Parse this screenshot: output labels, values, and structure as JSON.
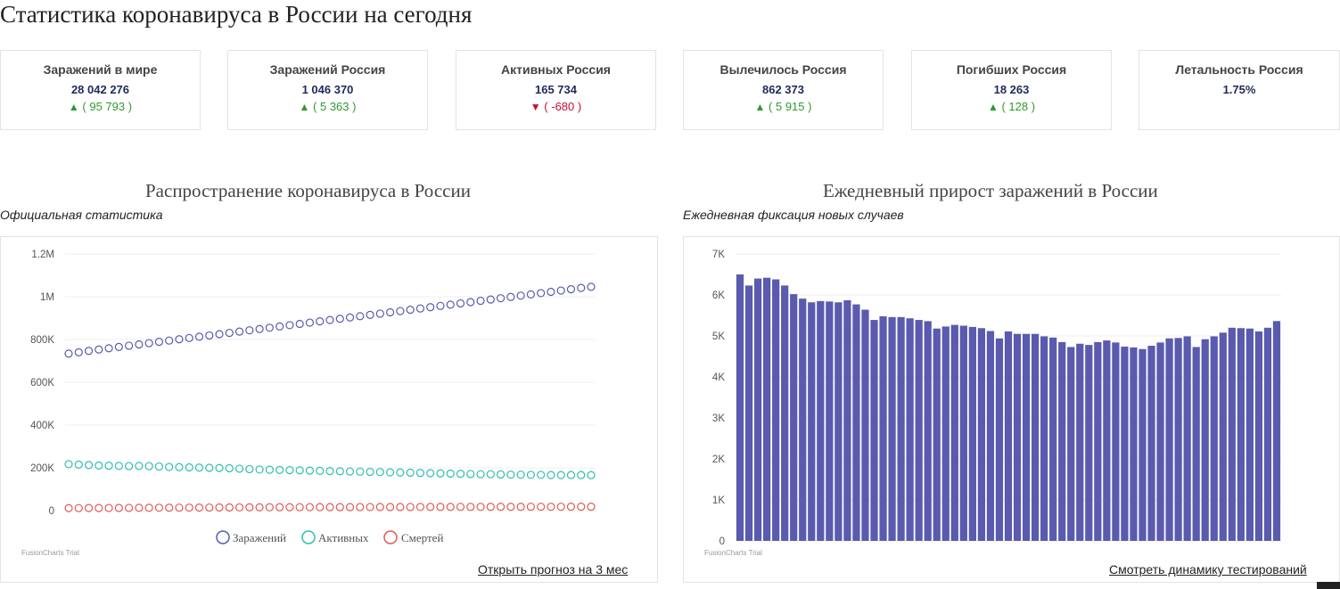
{
  "page": {
    "title": "Статистика коронавируса в России на сегодня"
  },
  "cards": [
    {
      "label": "Заражений в мире",
      "value": "28 042 276",
      "trend": "up",
      "arrow": "▲",
      "delta": "( 95 793 )"
    },
    {
      "label": "Заражений Россия",
      "value": "1 046 370",
      "trend": "up",
      "arrow": "▲",
      "delta": "( 5 363 )"
    },
    {
      "label": "Активных Россия",
      "value": "165 734",
      "trend": "down",
      "arrow": "▼",
      "delta": "( -680 )"
    },
    {
      "label": "Вылечилось Россия",
      "value": "862 373",
      "trend": "up",
      "arrow": "▲",
      "delta": "( 5 915 )"
    },
    {
      "label": "Погибших Россия",
      "value": "18 263",
      "trend": "up",
      "arrow": "▲",
      "delta": "( 128 )"
    },
    {
      "label": "Летальность Россия",
      "value": "1.75%",
      "trend": "none",
      "arrow": "",
      "delta": ""
    }
  ],
  "colors": {
    "up": "#2f9a2f",
    "down": "#c8102e",
    "bar": "#5a5aaf",
    "infected": "#5a5aaf",
    "active": "#2fbdb4",
    "deaths": "#e05a5a"
  },
  "spread_chart": {
    "title": "Распространение коронавируса в России",
    "subtitle": "Официальная статистика",
    "trial": "FusionCharts Trial",
    "link": "Открыть прогноз на 3 мес"
  },
  "daily_chart": {
    "title": "Ежедневный прирост заражений в России",
    "subtitle": "Ежедневная фиксация новых случаев",
    "trial": "FusionCharts Trial",
    "link": "Смотреть динамику тестирований"
  },
  "chart_data": [
    {
      "type": "line",
      "ylim": [
        0,
        1200000
      ],
      "y_ticks": [
        "0",
        "200K",
        "400K",
        "600K",
        "800K",
        "1M",
        "1.2M"
      ],
      "y_tick_values": [
        0,
        200000,
        400000,
        600000,
        800000,
        1000000,
        1200000
      ],
      "grid": true,
      "legend_position": "bottom",
      "series": [
        {
          "name": "Заражений",
          "color": "#5a5aaf",
          "values": [
            734000,
            740000,
            747000,
            753000,
            759000,
            765000,
            771000,
            777000,
            783000,
            789000,
            795000,
            801000,
            807000,
            813000,
            819000,
            825000,
            831000,
            837000,
            843000,
            849000,
            855000,
            861000,
            867000,
            873000,
            879000,
            885000,
            891000,
            897000,
            903000,
            909000,
            915000,
            921000,
            927000,
            933000,
            939000,
            945000,
            951000,
            957000,
            963000,
            969000,
            975000,
            981000,
            987000,
            993000,
            999000,
            1005000,
            1011000,
            1017000,
            1023000,
            1029000,
            1035000,
            1041000,
            1046370
          ]
        },
        {
          "name": "Активных",
          "color": "#2fbdb4",
          "values": [
            217000,
            215000,
            213000,
            211000,
            210000,
            209000,
            208000,
            209000,
            208000,
            206000,
            204000,
            203000,
            202000,
            201000,
            200000,
            199000,
            198000,
            196000,
            194000,
            192000,
            191000,
            190000,
            189000,
            188000,
            187000,
            186000,
            185000,
            184000,
            183000,
            182000,
            181000,
            180000,
            179000,
            178000,
            177000,
            176000,
            175000,
            174000,
            173000,
            172000,
            171000,
            170000,
            170000,
            169000,
            168000,
            168000,
            167000,
            167000,
            166000,
            166000,
            166000,
            166000,
            165734
          ]
        },
        {
          "name": "Смертей",
          "color": "#e05a5a",
          "values": [
            11500,
            11700,
            11900,
            12100,
            12300,
            12500,
            12700,
            12900,
            13100,
            13300,
            13500,
            13700,
            13900,
            14100,
            14300,
            14500,
            14700,
            14900,
            15100,
            15200,
            15400,
            15500,
            15700,
            15800,
            15900,
            16000,
            16100,
            16200,
            16300,
            16400,
            16500,
            16600,
            16700,
            16800,
            16900,
            17000,
            17100,
            17200,
            17300,
            17400,
            17450,
            17500,
            17600,
            17700,
            17750,
            17800,
            17900,
            17950,
            18000,
            18050,
            18100,
            18180,
            18263
          ]
        }
      ]
    },
    {
      "type": "bar",
      "ylim": [
        0,
        7000
      ],
      "y_ticks": [
        "0",
        "1K",
        "2K",
        "3K",
        "4K",
        "5K",
        "6K",
        "7K"
      ],
      "y_tick_values": [
        0,
        1000,
        2000,
        3000,
        4000,
        5000,
        6000,
        7000
      ],
      "grid": true,
      "series": [
        {
          "name": "",
          "color": "#5a5aaf",
          "values": [
            6500,
            6230,
            6400,
            6420,
            6380,
            6230,
            6020,
            5910,
            5820,
            5850,
            5840,
            5820,
            5870,
            5770,
            5640,
            5390,
            5480,
            5460,
            5460,
            5430,
            5390,
            5360,
            5180,
            5230,
            5270,
            5250,
            5220,
            5190,
            5120,
            4940,
            5110,
            5050,
            5050,
            5050,
            4990,
            4960,
            4850,
            4730,
            4810,
            4780,
            4850,
            4890,
            4840,
            4740,
            4720,
            4680,
            4760,
            4840,
            4940,
            4950,
            4990,
            4730,
            4920,
            4990,
            5080,
            5200,
            5190,
            5180,
            5110,
            5200,
            5363
          ]
        }
      ]
    }
  ]
}
